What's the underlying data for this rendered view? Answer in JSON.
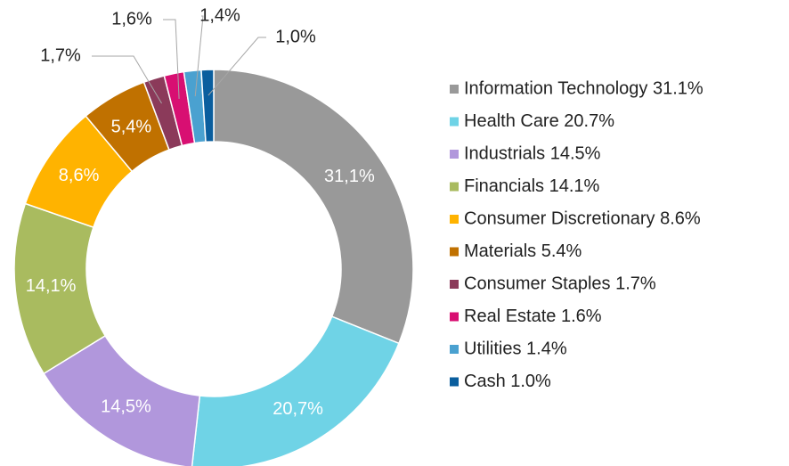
{
  "chart_data": {
    "type": "donut",
    "categories": [
      "Information Technology 31.1%",
      "Health Care 20.7%",
      "Industrials 14.5%",
      "Financials 14.1%",
      "Consumer Discretionary 8.6%",
      "Materials 5.4%",
      "Consumer Staples 1.7%",
      "Real Estate 1.6%",
      "Utilities 1.4%",
      "Cash 1.0%"
    ],
    "values": [
      31.1,
      20.7,
      14.5,
      14.1,
      8.6,
      5.4,
      1.7,
      1.6,
      1.4,
      1.0
    ],
    "value_labels": [
      "31,1%",
      "20,7%",
      "14,5%",
      "14,1%",
      "8,6%",
      "5,4%",
      "1,7%",
      "1,6%",
      "1,4%",
      "1,0%"
    ],
    "colors": [
      "#999999",
      "#6fd3e6",
      "#b197dc",
      "#a9bb5f",
      "#ffb300",
      "#c07100",
      "#8b3a5a",
      "#d80f72",
      "#4aa1d0",
      "#0a5e9e"
    ],
    "legend": "right"
  }
}
